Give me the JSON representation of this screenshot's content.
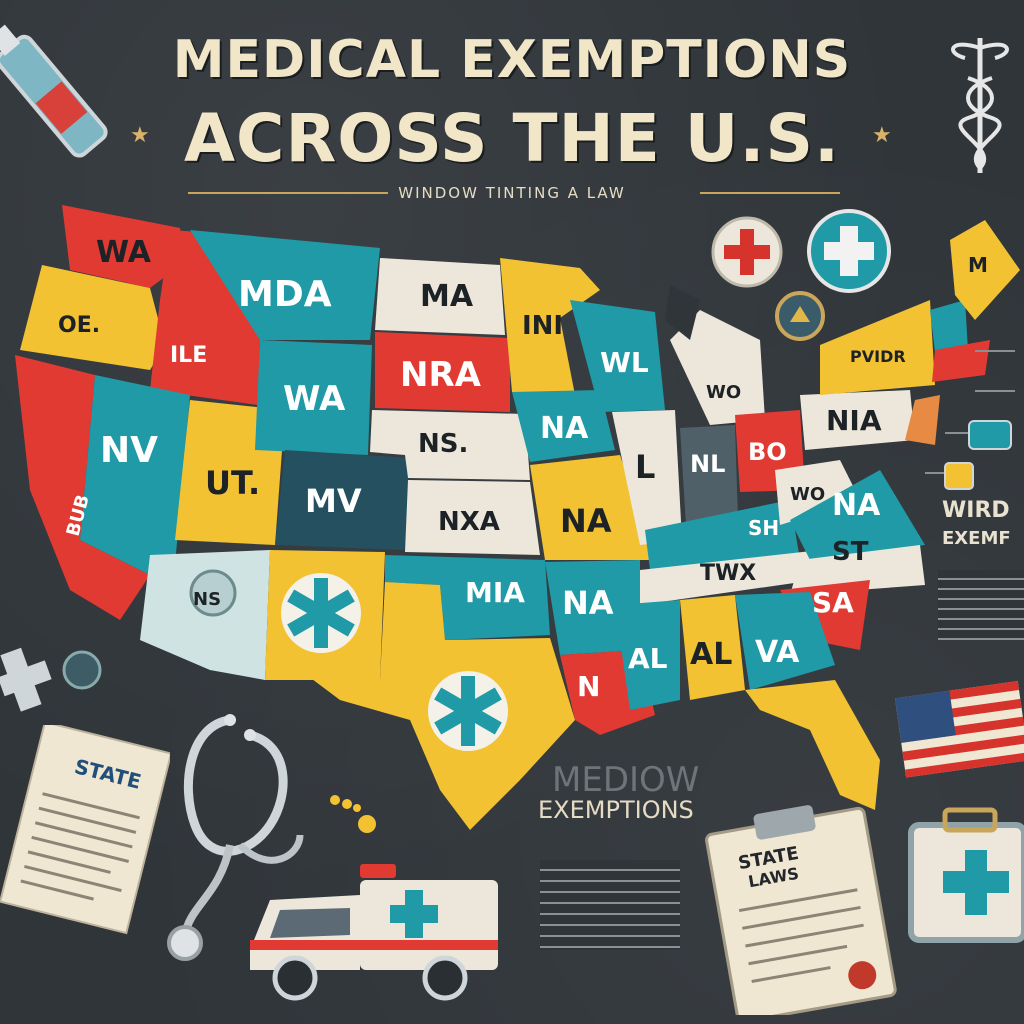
{
  "header": {
    "title_line1": "MEDICAL EXEMPTIONS",
    "title_line2": "ACROSS THE U.S.",
    "subtitle": "WINDOW TINTING A  LAW"
  },
  "map": {
    "labels": {
      "wa": "WA",
      "oe": "OE.",
      "ile": "ILE",
      "nv": "NV",
      "bub": "BUB",
      "mda": "MDA",
      "wa2": "WA",
      "ut": "UT.",
      "mv": "MV",
      "ns_az": "NS",
      "ma": "MA",
      "nra": "NRA",
      "ns": "NS.",
      "nxa": "NXA",
      "mia": "MIA",
      "ini": "INI",
      "na_ia": "NA",
      "na_mo": "NA",
      "na_ar": "NA",
      "n_la": "N",
      "wl": "WL",
      "l": "L",
      "nl": "NL",
      "bo": "BO",
      "wo": "WO",
      "sh": "SH",
      "nia": "NIA",
      "na_va": "NA",
      "twx": "TWX",
      "st": "ST",
      "sa": "SA",
      "al1": "AL",
      "al2": "AL",
      "va": "VA",
      "mn": "M",
      "pvidr": "PVIDR"
    }
  },
  "side": {
    "wirdo": "WIRD",
    "exemf": "EXEMF",
    "med_ghost": "MEDIOW",
    "exemptions": "EXEMPTIONS",
    "state_paper": "STATE",
    "state_laws_1": "STATE",
    "state_laws_2": "LAWS"
  },
  "icon_names": [
    "medical-cross-badge-icon",
    "star-of-life-icon",
    "caduceus-icon",
    "stethoscope-icon",
    "ambulance-icon",
    "clipboard-icon",
    "us-flag-icon",
    "first-aid-kit-icon",
    "syringe-icon"
  ],
  "colors": {
    "red": "#e03a33",
    "yellow": "#f2c232",
    "teal": "#1f9aa6",
    "navy": "#24505f",
    "cream": "#ece7da",
    "bg": "#30353a"
  }
}
